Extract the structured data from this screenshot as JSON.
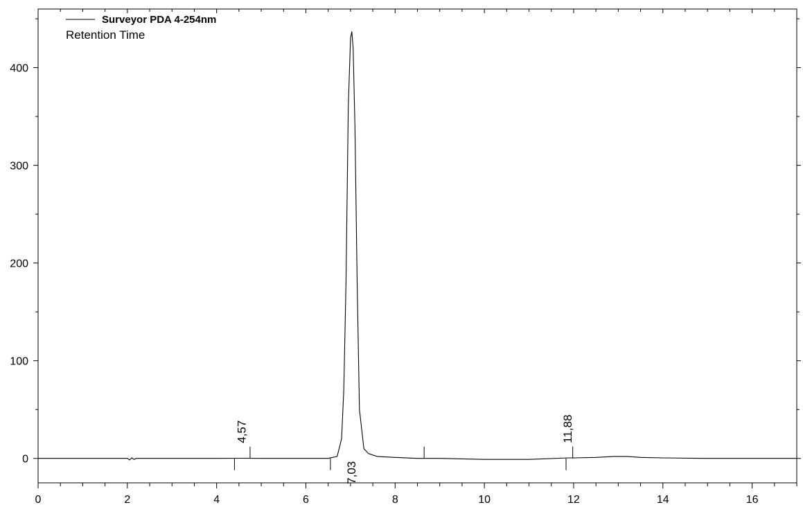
{
  "chart_data": {
    "type": "line",
    "legend": {
      "series_name": "Surveyor PDA 4-254nm",
      "position": "top-left"
    },
    "subtitle": "Retention Time",
    "xlabel": "",
    "ylabel": "",
    "xlim": [
      0,
      17
    ],
    "ylim": [
      -25,
      460
    ],
    "x_ticks": [
      0,
      2,
      4,
      6,
      8,
      10,
      12,
      14,
      16
    ],
    "y_ticks": [
      0,
      100,
      200,
      300,
      400
    ],
    "x_tick_labels": [
      "0",
      "2",
      "4",
      "6",
      "8",
      "10",
      "12",
      "14",
      "16"
    ],
    "y_tick_labels": [
      "0",
      "100",
      "200",
      "300",
      "400"
    ],
    "line_color": "#000000",
    "series": [
      {
        "name": "Surveyor PDA 4-254nm",
        "x": [
          0,
          1.0,
          2.0,
          2.05,
          2.1,
          2.15,
          2.2,
          3.0,
          4.0,
          4.57,
          5.0,
          6.0,
          6.5,
          6.7,
          6.8,
          6.85,
          6.9,
          6.95,
          7.0,
          7.03,
          7.06,
          7.1,
          7.15,
          7.2,
          7.3,
          7.4,
          7.6,
          8.0,
          8.5,
          9.0,
          10.0,
          11.0,
          11.88,
          12.0,
          12.5,
          12.9,
          13.2,
          13.5,
          14.0,
          15.0,
          16.0,
          17.0
        ],
        "y": [
          0,
          0,
          0,
          -1.5,
          0.5,
          -1,
          0,
          0,
          0,
          0.2,
          0,
          0,
          0,
          2,
          20,
          70,
          180,
          360,
          430,
          437,
          420,
          340,
          180,
          50,
          10,
          5,
          2,
          1,
          0,
          0,
          -1,
          -1,
          0.5,
          0.5,
          1,
          2,
          2,
          1,
          0.5,
          0,
          0,
          0
        ]
      }
    ],
    "peaks": [
      {
        "time": 4.57,
        "label": "4,57",
        "start": 4.4,
        "end": 4.75
      },
      {
        "time": 7.03,
        "label": "7,03",
        "start": 6.55,
        "end": 8.65
      },
      {
        "time": 11.88,
        "label": "11,88",
        "start": 11.83,
        "end": 11.98
      }
    ]
  }
}
